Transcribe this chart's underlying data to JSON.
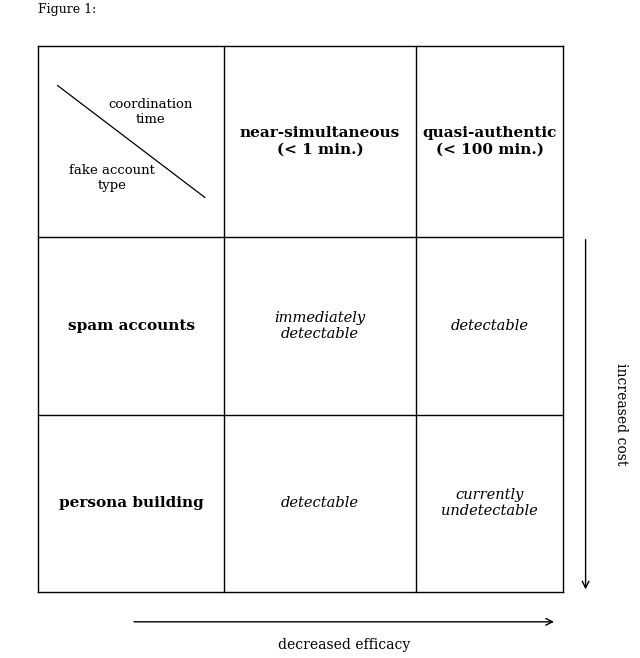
{
  "fig_width": 6.4,
  "fig_height": 6.58,
  "dpi": 100,
  "background_color": "#ffffff",
  "grid_color": "#000000",
  "text_color": "#000000",
  "col_boundaries": [
    0.06,
    0.35,
    0.65,
    0.88
  ],
  "row_boundaries": [
    0.1,
    0.37,
    0.64,
    0.93
  ],
  "header_row": {
    "near_simultaneous": "near-simultaneous\n(< 1 min.)",
    "quasi_authentic": "quasi-authentic\n(< 100 min.)"
  },
  "header_col": {
    "spam_accounts": "spam accounts",
    "persona_building": "persona building"
  },
  "corner_label_top": "coordination\ntime",
  "corner_label_bottom": "fake account\ntype",
  "cell_contents": {
    "spam_near": "immediately\ndetectable",
    "spam_quasi": "detectable",
    "persona_near": "detectable",
    "persona_quasi": "currently\nundetectable"
  },
  "arrow_bottom_label": "decreased efficacy",
  "arrow_right_label": "increased cost",
  "title_text": "Figure 1:"
}
